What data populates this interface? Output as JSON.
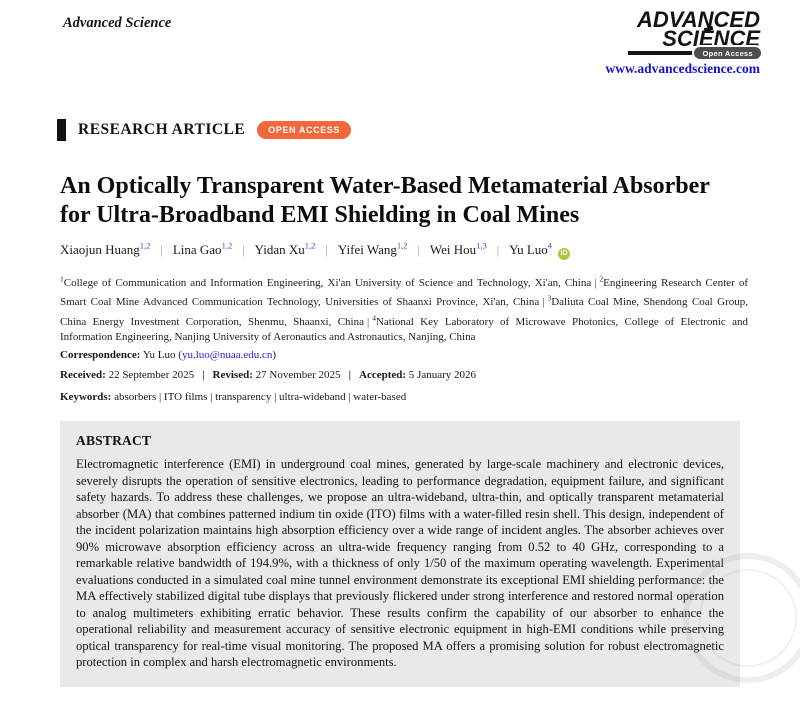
{
  "journal": {
    "name": "Advanced Science",
    "logo_line1": "ADVANCED",
    "logo_line2": "SCIENCE",
    "logo_badge": "Open Access",
    "website": "www.advancedscience.com"
  },
  "article": {
    "type_label": "RESEARCH ARTICLE",
    "access_badge": "OPEN ACCESS",
    "title": "An Optically Transparent Water-Based Metamaterial Absorber for Ultra-Broadband EMI Shielding in Coal Mines",
    "authors": [
      {
        "name": "Xiaojun Huang",
        "sup": "1,2",
        "orcid": false
      },
      {
        "name": "Lina Gao",
        "sup": "1,2",
        "orcid": false
      },
      {
        "name": "Yidan Xu",
        "sup": "1,2",
        "orcid": false
      },
      {
        "name": "Yifei Wang",
        "sup": "1,2",
        "orcid": false
      },
      {
        "name": "Wei Hou",
        "sup": "1,3",
        "orcid": false
      },
      {
        "name": "Yu Luo",
        "sup": "4",
        "orcid": true
      }
    ],
    "orcid_icon_label": "iD",
    "affiliations": [
      {
        "sup": "1",
        "text": "College of Communication and Information Engineering, Xi'an University of Science and Technology, Xi'an, China"
      },
      {
        "sup": "2",
        "text": "Engineering Research Center of Smart Coal Mine Advanced Communication Technology, Universities of Shaanxi Province, Xi'an, China"
      },
      {
        "sup": "3",
        "text": "Daliuta Coal Mine, Shendong Coal Group, China Energy Investment Corporation, Shenmu, Shaanxi, China"
      },
      {
        "sup": "4",
        "text": "National Key Laboratory of Microwave Photonics, College of Electronic and Information Engineering, Nanjing University of Aeronautics and Astronautics, Nanjing, China"
      }
    ],
    "correspondence": {
      "label": "Correspondence:",
      "name": "Yu Luo",
      "email": "yu.luo@nuaa.edu.cn"
    },
    "dates": [
      {
        "label": "Received:",
        "value": "22 September 2025"
      },
      {
        "label": "Revised:",
        "value": "27 November 2025"
      },
      {
        "label": "Accepted:",
        "value": "5 January 2026"
      }
    ],
    "keywords": {
      "label": "Keywords:",
      "value": "absorbers | ITO films | transparency | ultra-wideband | water-based"
    },
    "abstract": {
      "heading": "ABSTRACT",
      "text": "Electromagnetic interference (EMI) in underground coal mines, generated by large-scale machinery and electronic devices, severely disrupts the operation of sensitive electronics, leading to performance degradation, equipment failure, and significant safety hazards. To address these challenges, we propose an ultra-wideband, ultra-thin, and optically transparent metamaterial absorber (MA) that combines patterned indium tin oxide (ITO) films with a water-filled resin shell. This design, independent of the incident polarization maintains high absorption efficiency over a wide range of incident angles. The absorber achieves over 90% microwave absorption efficiency across an ultra-wide frequency ranging from 0.52 to 40 GHz, corresponding to a remarkable relative bandwidth of 194.9%, with a thickness of only 1/50 of the maximum operating wavelength. Experimental evaluations conducted in a simulated coal mine tunnel environment demonstrate its exceptional EMI shielding performance: the MA effectively stabilized digital tube displays that previously flickered under strong interference and restored normal operation to analog multimeters exhibiting erratic behavior. These results confirm the capability of our absorber to enhance the operational reliability and measurement accuracy of sensitive electronic equipment in high-EMI conditions while preserving optical transparency for real-time visual monitoring. The proposed MA offers a promising solution for robust electromagnetic protection in complex and harsh electromagnetic environments."
    }
  },
  "colors": {
    "accent_orange": "#f2683c",
    "link_blue": "#2525d5",
    "website_blue": "#1512cf",
    "superscript_blue": "#4343cf",
    "orcid_green": "#a6ce39",
    "abstract_background": "#e9e9e9",
    "logo_black": "#141414"
  }
}
